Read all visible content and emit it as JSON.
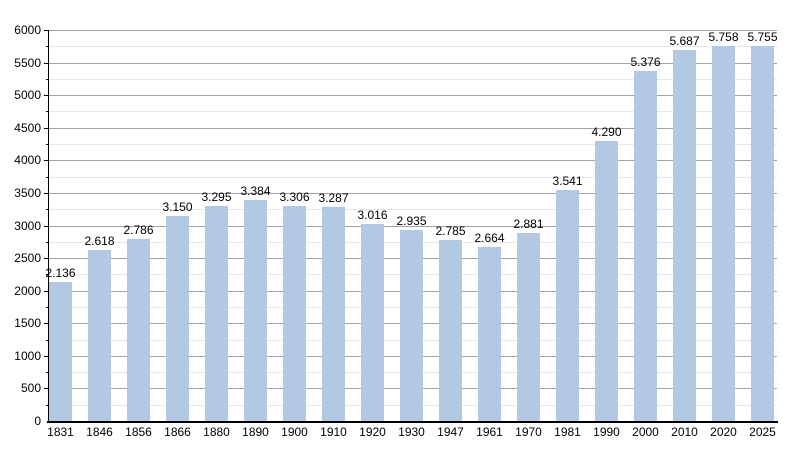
{
  "chart_data": {
    "type": "bar",
    "title": "",
    "xlabel": "",
    "ylabel": "",
    "categories": [
      "1831",
      "1846",
      "1856",
      "1866",
      "1880",
      "1890",
      "1900",
      "1910",
      "1920",
      "1930",
      "1947",
      "1961",
      "1970",
      "1981",
      "1990",
      "2000",
      "2010",
      "2020",
      "2025"
    ],
    "values": [
      2136,
      2618,
      2786,
      3150,
      3295,
      3384,
      3306,
      3287,
      3016,
      2935,
      2785,
      2664,
      2881,
      3541,
      4290,
      5376,
      5687,
      5758,
      5755
    ],
    "bar_labels": [
      "2.136",
      "2.618",
      "2.786",
      "3.150",
      "3.295",
      "3.384",
      "3.306",
      "3.287",
      "3.016",
      "2.935",
      "2.785",
      "2.664",
      "2.881",
      "3.541",
      "4.290",
      "5.376",
      "5.687",
      "5.758",
      "5.755"
    ],
    "ylim": [
      0,
      6000
    ],
    "y_major_step": 500,
    "y_minor_step": 250,
    "y_tick_labels": [
      "0",
      "500",
      "1000",
      "1500",
      "2000",
      "2500",
      "3000",
      "3500",
      "4000",
      "4500",
      "5000",
      "5500",
      "6000"
    ],
    "grid": "on",
    "legend": "none",
    "colors": {
      "bar": "#b3c9e3",
      "grid_major": "#a3a3a3",
      "grid_minor": "#e7e7e7",
      "axis": "#000000",
      "text": "#000000",
      "background": "#ffffff"
    }
  }
}
